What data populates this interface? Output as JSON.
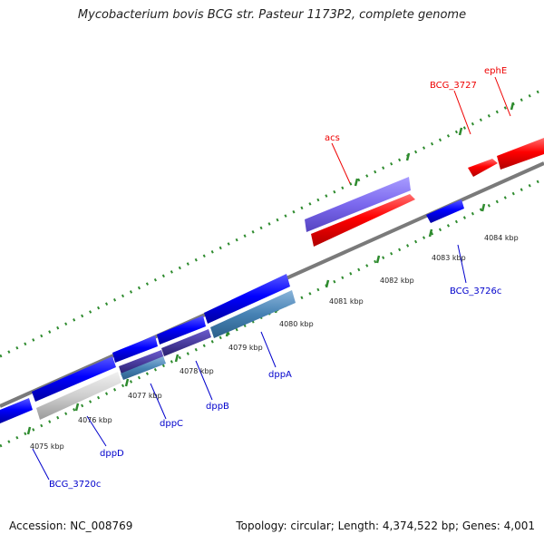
{
  "title": "Mycobacterium bovis BCG str. Pasteur 1173P2, complete genome",
  "footer": {
    "accession": "Accession: NC_008769",
    "summary": "Topology: circular; Length: 4,374,522 bp; Genes: 4,001"
  },
  "colors": {
    "backbone": "#808080",
    "tick": "#2e8b2e",
    "forward_gene": "#ff0000",
    "reverse_gene": "#0000ff",
    "dpp_operon": "#4682b4",
    "acs": "#7b68ee",
    "pseudo": "#c8c8c8",
    "label_red": "#ee0000",
    "label_blue": "#0000cc"
  },
  "scale_labels": [
    "4075 kbp",
    "4076 kbp",
    "4077 kbp",
    "4078 kbp",
    "4079 kbp",
    "4080 kbp",
    "4081 kbp",
    "4082 kbp",
    "4083 kbp",
    "4084 kbp"
  ],
  "gene_labels": {
    "ephE": "ephE",
    "BCG_3727": "BCG_3727",
    "acs": "acs",
    "BCG_3726c": "BCG_3726c",
    "dppA": "dppA",
    "dppB": "dppB",
    "dppC": "dppC",
    "dppD": "dppD",
    "BCG_3720c": "BCG_3720c"
  }
}
